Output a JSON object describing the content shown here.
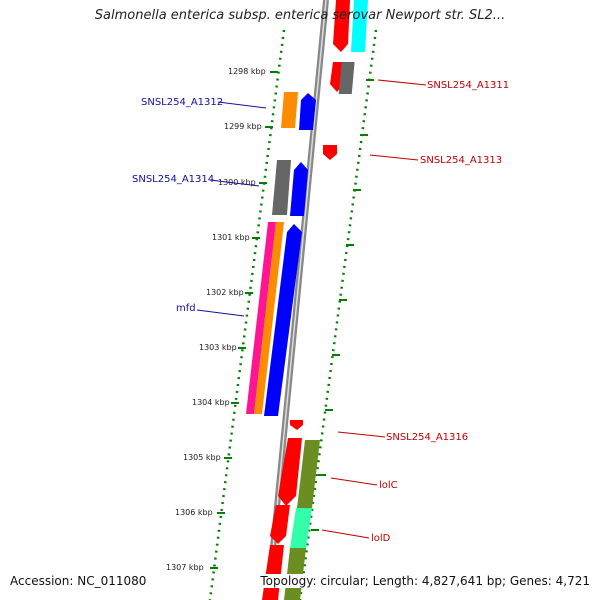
{
  "header": {
    "title": "Salmonella enterica subsp. enterica serovar Newport str. SL2..."
  },
  "footer": {
    "accession": "Accession: NC_011080",
    "summary": "Topology: circular; Length: 4,827,641 bp; Genes: 4,721"
  },
  "ticks": [
    "1298 kbp",
    "1299 kbp",
    "1300 kbp",
    "1301 kbp",
    "1302 kbp",
    "1303 kbp",
    "1304 kbp",
    "1305 kbp",
    "1306 kbp",
    "1307 kbp"
  ],
  "left_labels": [
    "SNSL254_A1312",
    "SNSL254_A1314",
    "mfd"
  ],
  "right_labels": [
    "SNSL254_A1311",
    "SNSL254_A1313",
    "SNSL254_A1316",
    "lolC",
    "lolD"
  ],
  "colors": {
    "red": "#ff0000",
    "blue": "#0000ff",
    "orange": "#ff8c00",
    "magenta": "#ff1493",
    "gray": "#666666",
    "olive": "#6b8e23",
    "cyan": "#00ffff",
    "aquamarine": "#33ffaa",
    "tick_green": "#008000",
    "label_blue": "#1010a0",
    "label_red": "#c00000"
  }
}
